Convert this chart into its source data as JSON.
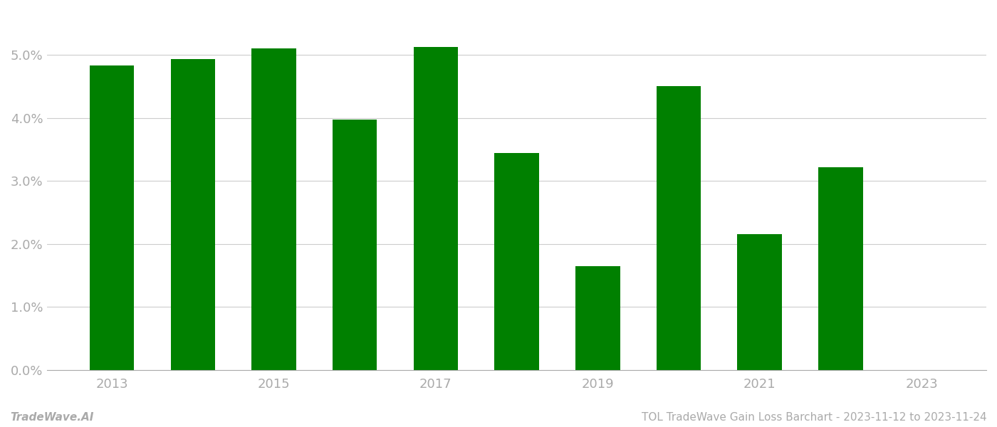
{
  "years": [
    2013,
    2014,
    2015,
    2016,
    2017,
    2018,
    2019,
    2020,
    2021,
    2022
  ],
  "values": [
    0.0483,
    0.0493,
    0.051,
    0.0397,
    0.0512,
    0.0344,
    0.0165,
    0.045,
    0.0215,
    0.0322
  ],
  "bar_color": "#008000",
  "background_color": "#ffffff",
  "footer_left": "TradeWave.AI",
  "footer_right": "TOL TradeWave Gain Loss Barchart - 2023-11-12 to 2023-11-24",
  "ylim": [
    0,
    0.057
  ],
  "yticks": [
    0.0,
    0.01,
    0.02,
    0.03,
    0.04,
    0.05
  ],
  "xtick_label_years": [
    2013,
    2015,
    2017,
    2019,
    2021,
    2023
  ],
  "grid_color": "#cccccc",
  "tick_color": "#aaaaaa",
  "footer_fontsize": 11,
  "bar_width": 0.55
}
